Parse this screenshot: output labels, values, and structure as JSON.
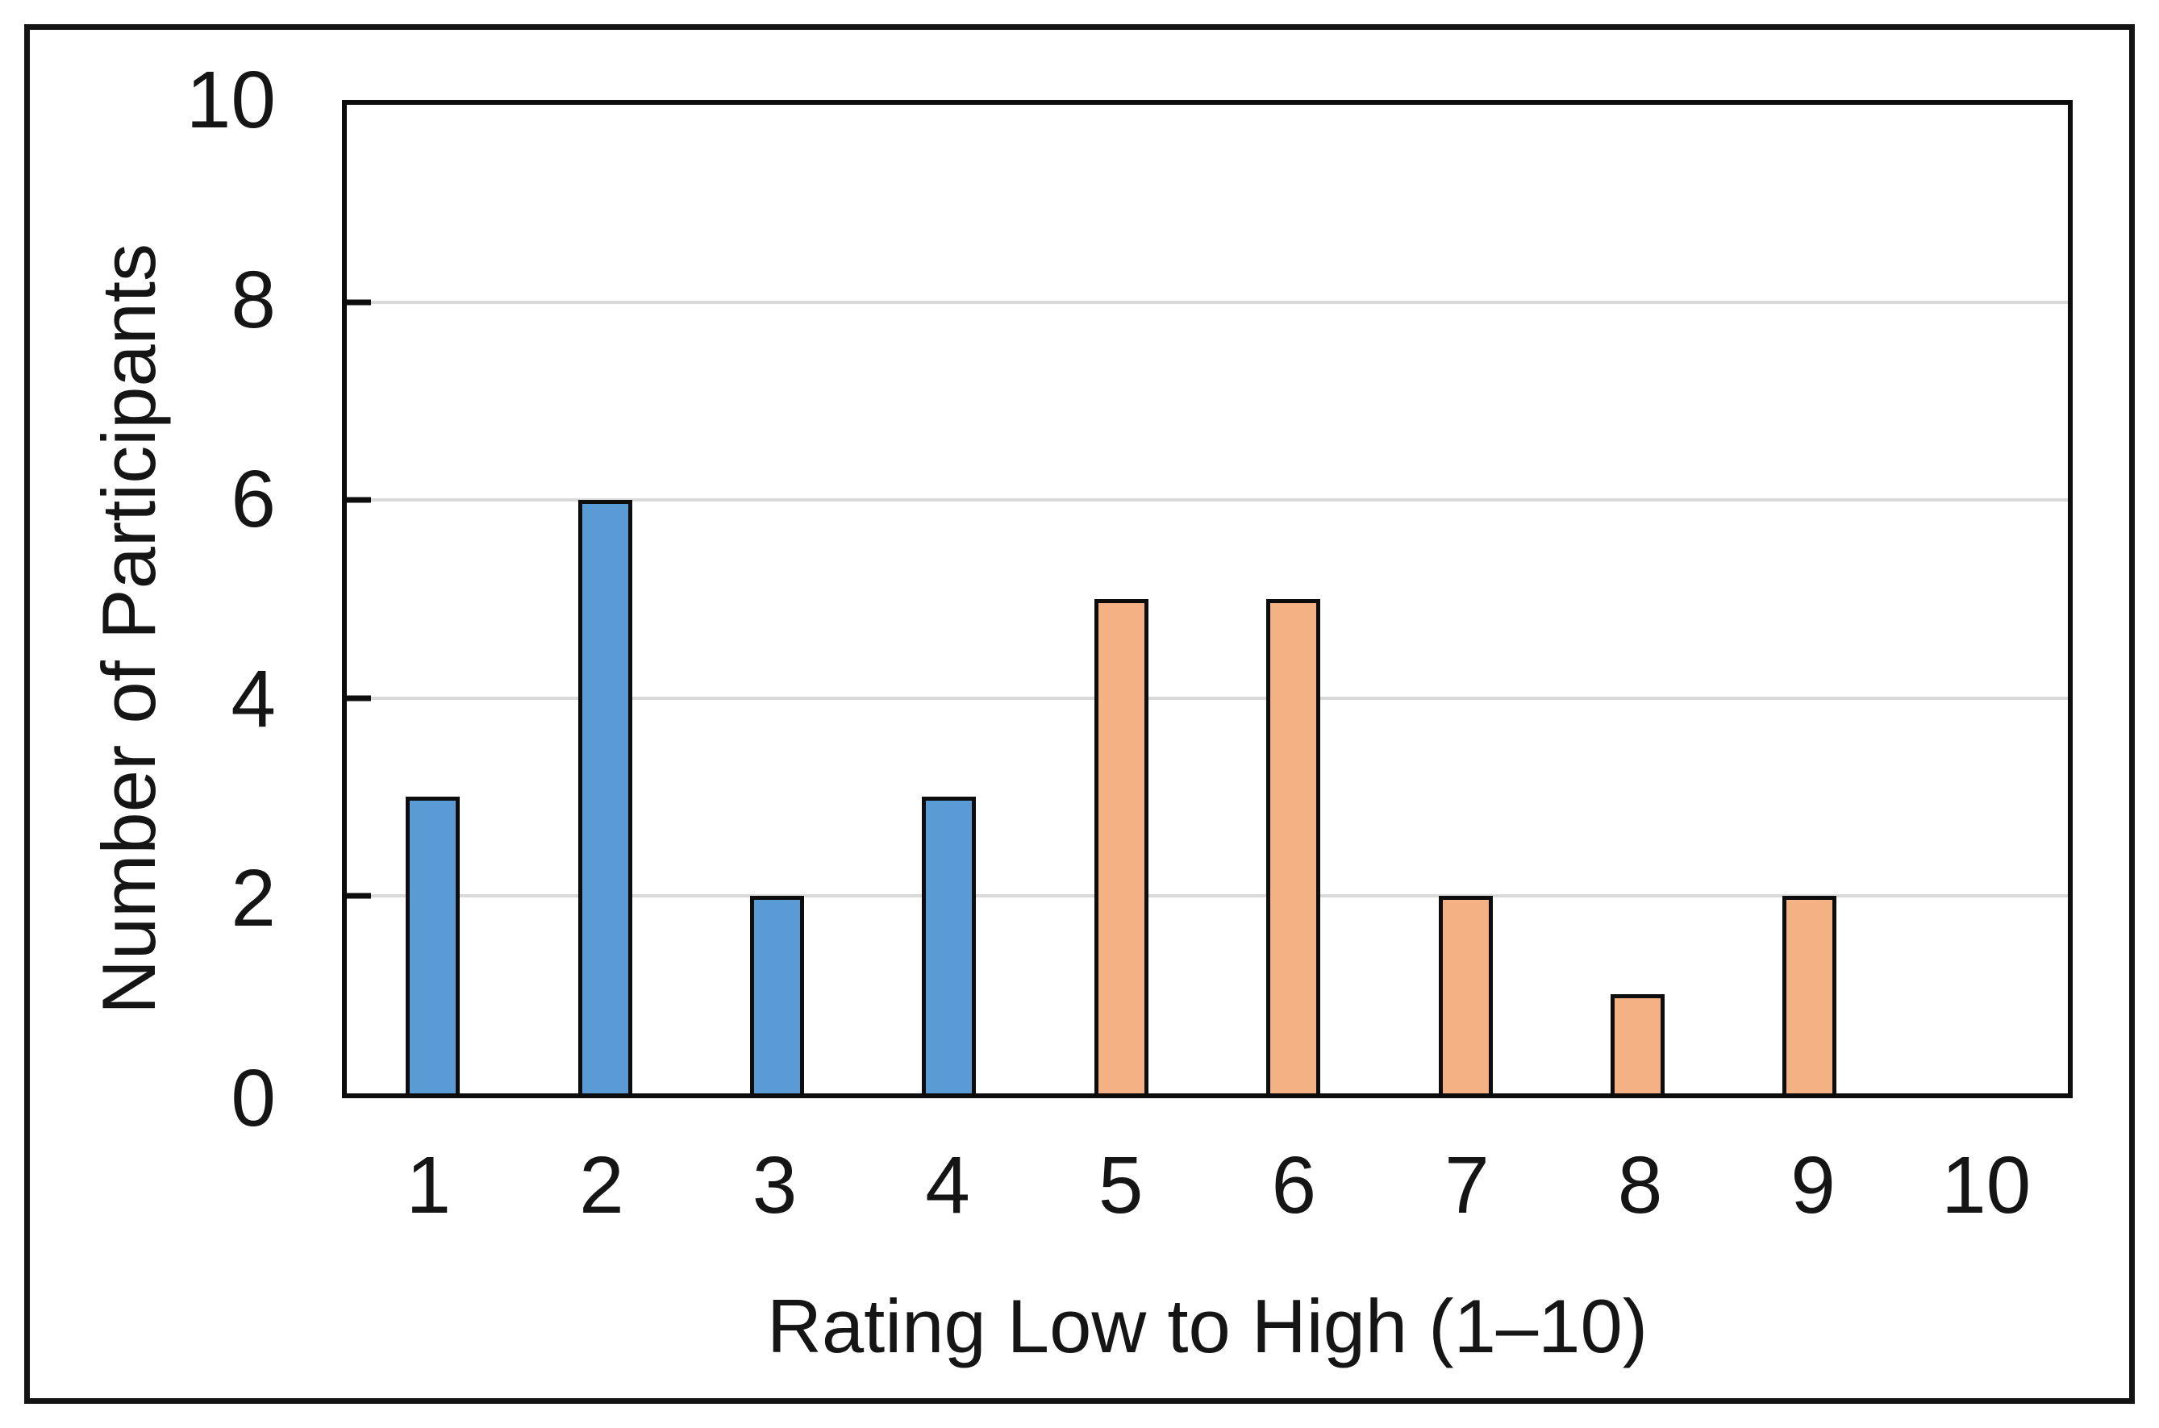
{
  "figure": {
    "background": "#ffffff",
    "outer_frame_color": "#141414",
    "plot_border_color": "#0d0d0d",
    "text_color": "#151515"
  },
  "chart_data": {
    "type": "bar",
    "title": "",
    "xlabel": "Rating Low to High (1–10)",
    "ylabel": "Number of Participants",
    "categories": [
      "1",
      "2",
      "3",
      "4",
      "5",
      "6",
      "7",
      "8",
      "9",
      "10"
    ],
    "values": [
      3,
      6,
      2,
      3,
      5,
      5,
      2,
      1,
      2,
      0
    ],
    "bar_colors": [
      "#5b9bd5",
      "#5b9bd5",
      "#5b9bd5",
      "#5b9bd5",
      "#f4b183",
      "#f4b183",
      "#f4b183",
      "#f4b183",
      "#f4b183",
      "#f4b183"
    ],
    "bar_border_color": "#0d0d0d",
    "accent_blue": "#5b9bd5",
    "accent_orange": "#f4b183",
    "ylim": [
      0,
      10
    ],
    "y_ticks": [
      0,
      2,
      4,
      6,
      8,
      10
    ],
    "gridlines_at": [
      2,
      4,
      6,
      8
    ],
    "grid": true,
    "gridline_color": "#d9d9d9",
    "legend": "none"
  }
}
